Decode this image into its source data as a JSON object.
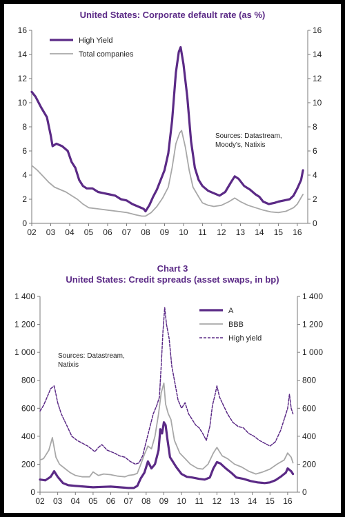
{
  "colors": {
    "purple": "#5b2a86",
    "gray": "#a8a8a8",
    "axis": "#7a7a7a",
    "title": "#5b2a86"
  },
  "chart_data": [
    {
      "type": "line",
      "title": "United States: Corporate default rate (as %)",
      "xlabel": "",
      "ylabel": "",
      "x_ticks": [
        "02",
        "03",
        "04",
        "05",
        "06",
        "07",
        "08",
        "09",
        "10",
        "11",
        "12",
        "13",
        "14",
        "15",
        "16"
      ],
      "xlim": [
        2002,
        2016.55
      ],
      "ylim": [
        0,
        16
      ],
      "y_ticks": [
        0,
        2,
        4,
        6,
        8,
        10,
        12,
        14,
        16
      ],
      "y_tick_labels": [
        "0",
        "2",
        "4",
        "6",
        "8",
        "10",
        "12",
        "14",
        "16"
      ],
      "grid": false,
      "legend_position": "top-left",
      "annotation": [
        "Sources: Datastream,",
        "Moody's, Natixis"
      ],
      "series": [
        {
          "name": "High Yield",
          "style": "thick-purple",
          "x": [
            2002.0,
            2002.2,
            2002.5,
            2002.8,
            2003.0,
            2003.1,
            2003.3,
            2003.6,
            2003.9,
            2004.1,
            2004.3,
            2004.5,
            2004.7,
            2004.9,
            2005.2,
            2005.5,
            2005.8,
            2006.1,
            2006.4,
            2006.7,
            2007.0,
            2007.3,
            2007.6,
            2007.9,
            2008.0,
            2008.2,
            2008.4,
            2008.6,
            2008.8,
            2009.0,
            2009.2,
            2009.4,
            2009.6,
            2009.75,
            2009.85,
            2010.0,
            2010.2,
            2010.4,
            2010.6,
            2010.8,
            2011.0,
            2011.3,
            2011.6,
            2011.9,
            2012.2,
            2012.5,
            2012.7,
            2012.9,
            2013.2,
            2013.5,
            2013.8,
            2014.0,
            2014.2,
            2014.5,
            2014.8,
            2015.0,
            2015.3,
            2015.6,
            2015.8,
            2016.0,
            2016.2,
            2016.3
          ],
          "y": [
            10.9,
            10.5,
            9.6,
            8.8,
            7.3,
            6.4,
            6.6,
            6.4,
            6.0,
            5.1,
            4.6,
            3.6,
            3.1,
            2.9,
            2.9,
            2.6,
            2.5,
            2.4,
            2.3,
            2.0,
            1.9,
            1.6,
            1.4,
            1.2,
            1.0,
            1.5,
            2.2,
            2.8,
            3.6,
            4.4,
            5.8,
            8.5,
            12.5,
            14.2,
            14.6,
            13.2,
            10.5,
            6.8,
            4.6,
            3.6,
            3.1,
            2.7,
            2.5,
            2.3,
            2.6,
            3.4,
            3.9,
            3.7,
            3.1,
            2.8,
            2.4,
            2.2,
            1.8,
            1.6,
            1.7,
            1.8,
            1.9,
            2.0,
            2.3,
            2.9,
            3.6,
            4.4
          ]
        },
        {
          "name": "Total companies",
          "style": "gray",
          "x": [
            2002.0,
            2002.3,
            2002.6,
            2002.9,
            2003.2,
            2003.5,
            2003.8,
            2004.1,
            2004.4,
            2004.7,
            2005.0,
            2005.5,
            2006.0,
            2006.5,
            2007.0,
            2007.5,
            2007.8,
            2008.0,
            2008.3,
            2008.6,
            2008.9,
            2009.2,
            2009.4,
            2009.6,
            2009.8,
            2009.9,
            2010.1,
            2010.3,
            2010.5,
            2010.8,
            2011.0,
            2011.3,
            2011.6,
            2012.0,
            2012.4,
            2012.7,
            2013.0,
            2013.4,
            2013.8,
            2014.2,
            2014.6,
            2015.0,
            2015.4,
            2015.8,
            2016.0,
            2016.3
          ],
          "y": [
            4.8,
            4.4,
            3.9,
            3.4,
            3.0,
            2.8,
            2.6,
            2.3,
            2.0,
            1.6,
            1.3,
            1.2,
            1.1,
            1.0,
            0.9,
            0.7,
            0.6,
            0.6,
            0.9,
            1.4,
            2.1,
            3.0,
            4.6,
            6.6,
            7.5,
            7.7,
            6.3,
            4.4,
            3.0,
            2.2,
            1.7,
            1.5,
            1.4,
            1.5,
            1.8,
            2.1,
            1.8,
            1.5,
            1.3,
            1.1,
            0.95,
            0.9,
            1.0,
            1.3,
            1.6,
            2.4
          ]
        }
      ]
    },
    {
      "type": "line",
      "chart_label": "Chart 3",
      "title": "United States: Credit spreads (asset swaps, in bp)",
      "xlabel": "",
      "ylabel": "",
      "x_ticks": [
        "02",
        "03",
        "04",
        "05",
        "06",
        "07",
        "08",
        "09",
        "10",
        "11",
        "12",
        "13",
        "14",
        "15",
        "16"
      ],
      "xlim": [
        2002,
        2016.55
      ],
      "ylim": [
        0,
        1400
      ],
      "y_ticks": [
        0,
        200,
        400,
        600,
        800,
        1000,
        1200,
        1400
      ],
      "y_tick_labels": [
        "0",
        "200",
        "400",
        "600",
        "800",
        "1 000",
        "1 200",
        "1 400"
      ],
      "grid": false,
      "legend_position": "top-right",
      "annotation": [
        "Sources: Datastream,",
        "Natixis"
      ],
      "series": [
        {
          "name": "A",
          "style": "thick-purple",
          "x": [
            2002.0,
            2002.3,
            2002.6,
            2002.8,
            2003.0,
            2003.3,
            2003.6,
            2004.0,
            2004.5,
            2005.0,
            2005.5,
            2006.0,
            2006.5,
            2007.0,
            2007.3,
            2007.5,
            2007.7,
            2007.9,
            2008.1,
            2008.3,
            2008.5,
            2008.7,
            2008.8,
            2008.9,
            2009.0,
            2009.1,
            2009.2,
            2009.35,
            2009.5,
            2009.7,
            2010.0,
            2010.3,
            2010.6,
            2011.0,
            2011.3,
            2011.6,
            2011.8,
            2012.0,
            2012.2,
            2012.5,
            2012.8,
            2013.1,
            2013.5,
            2013.9,
            2014.3,
            2014.7,
            2015.0,
            2015.3,
            2015.6,
            2015.9,
            2016.0,
            2016.2,
            2016.3
          ],
          "y": [
            90,
            85,
            110,
            150,
            110,
            65,
            50,
            45,
            40,
            35,
            38,
            40,
            35,
            30,
            30,
            45,
            100,
            140,
            220,
            170,
            200,
            300,
            450,
            420,
            500,
            480,
            380,
            250,
            220,
            180,
            130,
            110,
            105,
            95,
            90,
            105,
            170,
            215,
            205,
            170,
            140,
            105,
            95,
            80,
            70,
            65,
            70,
            85,
            110,
            140,
            170,
            150,
            130
          ]
        },
        {
          "name": "BBB",
          "style": "gray",
          "x": [
            2002.0,
            2002.2,
            2002.5,
            2002.7,
            2002.9,
            2003.1,
            2003.4,
            2003.7,
            2004.0,
            2004.4,
            2004.8,
            2005.0,
            2005.3,
            2005.6,
            2006.0,
            2006.4,
            2006.8,
            2007.0,
            2007.3,
            2007.5,
            2007.7,
            2007.9,
            2008.1,
            2008.3,
            2008.5,
            2008.7,
            2008.85,
            2009.0,
            2009.1,
            2009.25,
            2009.4,
            2009.6,
            2009.9,
            2010.2,
            2010.5,
            2010.9,
            2011.2,
            2011.5,
            2011.8,
            2012.0,
            2012.3,
            2012.6,
            2013.0,
            2013.4,
            2013.8,
            2014.2,
            2014.6,
            2015.0,
            2015.4,
            2015.8,
            2016.0,
            2016.2,
            2016.3
          ],
          "y": [
            230,
            240,
            300,
            390,
            250,
            200,
            170,
            140,
            120,
            110,
            110,
            145,
            120,
            130,
            125,
            115,
            110,
            120,
            125,
            135,
            200,
            270,
            330,
            310,
            400,
            560,
            710,
            780,
            630,
            560,
            520,
            370,
            280,
            240,
            200,
            170,
            165,
            200,
            280,
            320,
            260,
            240,
            200,
            180,
            150,
            130,
            145,
            165,
            200,
            230,
            280,
            250,
            210
          ]
        },
        {
          "name": "High yield",
          "style": "dashed-purple",
          "x": [
            2002.0,
            2002.2,
            2002.4,
            2002.6,
            2002.8,
            2002.9,
            2003.0,
            2003.2,
            2003.5,
            2003.8,
            2004.1,
            2004.4,
            2004.7,
            2004.9,
            2005.1,
            2005.3,
            2005.5,
            2005.8,
            2006.2,
            2006.5,
            2006.8,
            2007.1,
            2007.4,
            2007.6,
            2007.8,
            2008.0,
            2008.2,
            2008.4,
            2008.6,
            2008.75,
            2008.85,
            2008.95,
            2009.05,
            2009.15,
            2009.3,
            2009.45,
            2009.6,
            2009.8,
            2010.0,
            2010.2,
            2010.4,
            2010.6,
            2010.8,
            2011.0,
            2011.2,
            2011.4,
            2011.6,
            2011.75,
            2011.9,
            2012.0,
            2012.15,
            2012.3,
            2012.6,
            2012.9,
            2013.2,
            2013.5,
            2013.8,
            2014.1,
            2014.4,
            2014.7,
            2015.0,
            2015.3,
            2015.6,
            2015.8,
            2016.0,
            2016.1,
            2016.2,
            2016.3
          ],
          "y": [
            580,
            620,
            680,
            740,
            760,
            700,
            640,
            560,
            480,
            400,
            370,
            350,
            330,
            310,
            290,
            320,
            340,
            300,
            280,
            260,
            250,
            220,
            200,
            210,
            260,
            360,
            460,
            560,
            620,
            680,
            900,
            1150,
            1320,
            1200,
            1100,
            900,
            800,
            660,
            600,
            640,
            560,
            520,
            480,
            460,
            420,
            370,
            470,
            620,
            700,
            760,
            680,
            640,
            560,
            500,
            470,
            460,
            420,
            400,
            370,
            350,
            330,
            360,
            440,
            520,
            600,
            700,
            600,
            560
          ]
        }
      ]
    }
  ]
}
